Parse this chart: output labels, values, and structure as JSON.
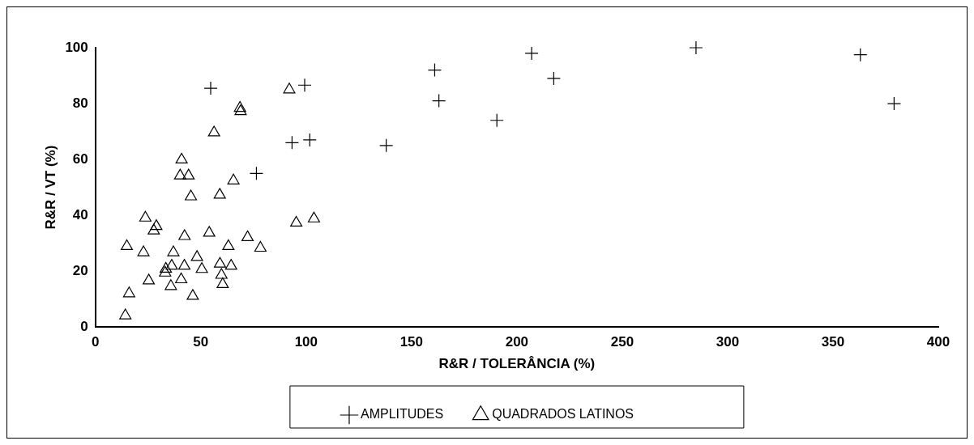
{
  "chart_data": {
    "type": "scatter",
    "xlabel": "R&R / TOLERÂNCIA (%)",
    "ylabel": "R&R / VT (%)",
    "xlim": [
      0,
      400
    ],
    "xticks": [
      0,
      50,
      100,
      150,
      200,
      250,
      300,
      350,
      400
    ],
    "ylim": [
      0,
      100
    ],
    "yticks": [
      0,
      20,
      40,
      60,
      80,
      100
    ],
    "grid": false,
    "legend": "bottom",
    "series": [
      {
        "name": "AMPLITUDES",
        "color": "#000000",
        "marker": "cross",
        "x": [
          54.7,
          76.4,
          93.3,
          99.3,
          101.7,
          138,
          161,
          163,
          190.5,
          207,
          217.5,
          285,
          363,
          379
        ],
        "values": [
          85.5,
          55,
          66,
          86.6,
          67,
          65,
          92,
          81,
          74,
          98,
          89,
          100,
          97.5,
          80
        ]
      },
      {
        "name": "QUADRADOS LATINOS",
        "color": "#000000",
        "marker": "triangle",
        "x": [
          68.6,
          68.9,
          56.3,
          40.9,
          40.2,
          44.2,
          65.5,
          45.3,
          59,
          23.7,
          28.9,
          27.7,
          42.3,
          54,
          72.2,
          78.3,
          14.9,
          22.8,
          37,
          63.1,
          48.2,
          33.4,
          36.2,
          33.1,
          42.2,
          50.5,
          59.1,
          64.4,
          59.8,
          60.4,
          25.3,
          40.7,
          35.8,
          46.2,
          16,
          14.2,
          92,
          95.3,
          103.7
        ],
        "values": [
          78.4,
          77.2,
          69.6,
          59.9,
          54.2,
          54.2,
          52.4,
          46.7,
          47.3,
          39.1,
          36.1,
          34.5,
          32.5,
          33.7,
          32.1,
          28.3,
          28.9,
          26.7,
          26.7,
          28.9,
          25,
          20.8,
          21.9,
          19.4,
          21.9,
          20.7,
          22.6,
          21.9,
          18.6,
          15.3,
          16.6,
          17,
          14.6,
          11.1,
          12,
          4.1,
          85,
          37.3,
          38.8
        ]
      }
    ]
  }
}
